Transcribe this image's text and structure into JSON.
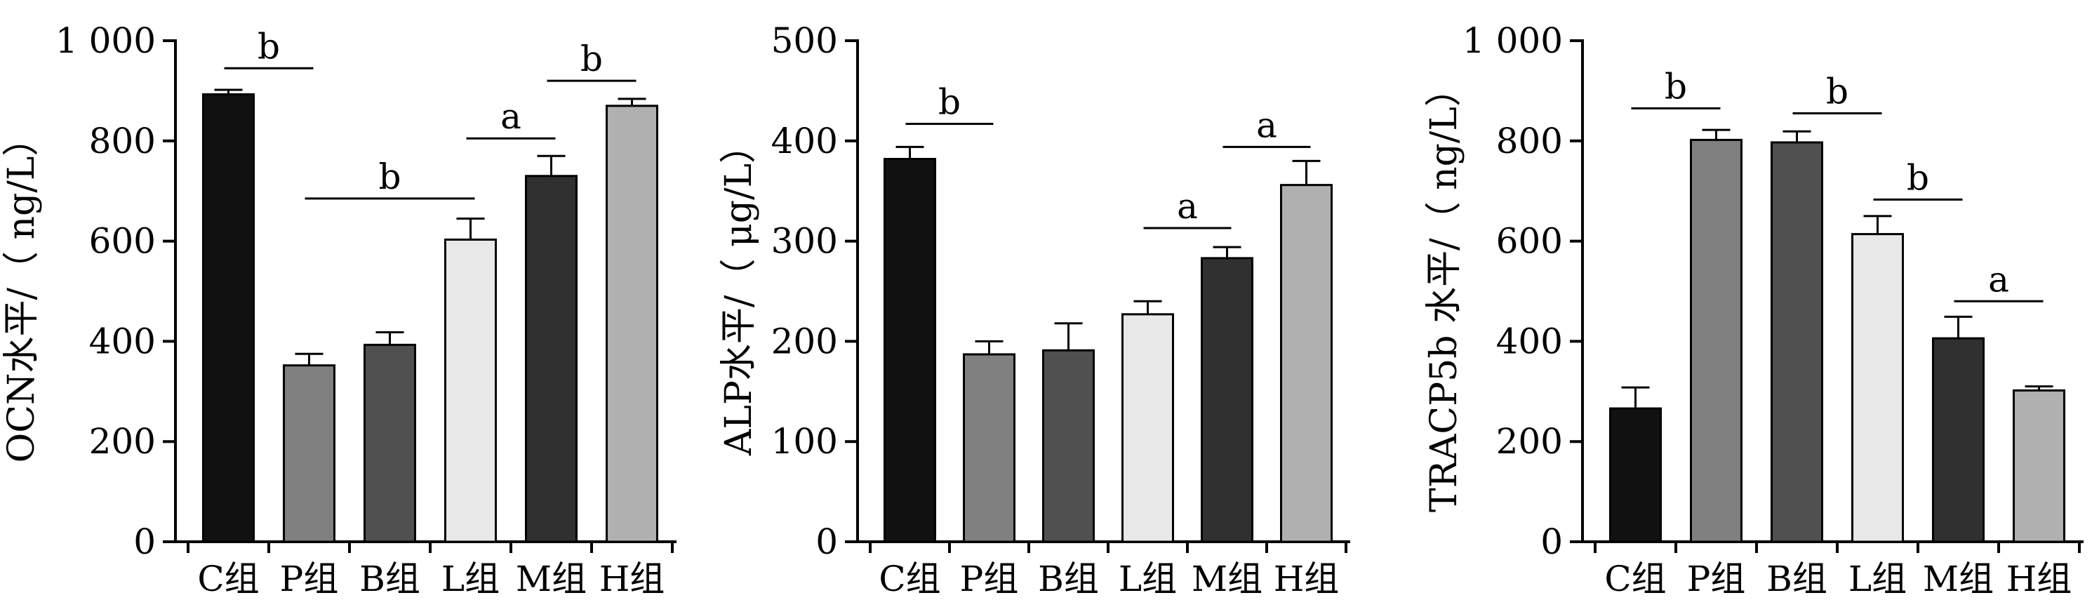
{
  "chart_data": [
    {
      "type": "bar",
      "ylabel": "OCN水平/（ ng/L）",
      "ylim": [
        0,
        1000
      ],
      "yticks": [
        0,
        200,
        400,
        600,
        800,
        1000
      ],
      "ytick_labels": [
        "0",
        "200",
        "400",
        "600",
        "800",
        "1 000"
      ],
      "categories": [
        "C组",
        "P组",
        "B组",
        "L组",
        "M组",
        "H组"
      ],
      "values": [
        893,
        352,
        393,
        603,
        730,
        870
      ],
      "errors": [
        9,
        23,
        25,
        42,
        40,
        14
      ],
      "colors": [
        "#111111",
        "#808080",
        "#505050",
        "#e8e8e8",
        "#303030",
        "#b0b0b0"
      ],
      "annotations": [
        {
          "from": 0,
          "to": 1,
          "label": "b",
          "y": 945
        },
        {
          "from": 1,
          "to": 3,
          "label": "b",
          "y": 685
        },
        {
          "from": 3,
          "to": 4,
          "label": "a",
          "y": 805
        },
        {
          "from": 4,
          "to": 5,
          "label": "b",
          "y": 920
        }
      ]
    },
    {
      "type": "bar",
      "ylabel": "ALP水平/（ μg/L）",
      "ylim": [
        0,
        500
      ],
      "yticks": [
        0,
        100,
        200,
        300,
        400,
        500
      ],
      "ytick_labels": [
        "0",
        "100",
        "200",
        "300",
        "400",
        "500"
      ],
      "categories": [
        "C组",
        "P组",
        "B组",
        "L组",
        "M组",
        "H组"
      ],
      "values": [
        382,
        187,
        191,
        227,
        283,
        356
      ],
      "errors": [
        12,
        13,
        27,
        13,
        11,
        24
      ],
      "colors": [
        "#111111",
        "#808080",
        "#505050",
        "#e8e8e8",
        "#303030",
        "#b0b0b0"
      ],
      "annotations": [
        {
          "from": 0,
          "to": 1,
          "label": "b",
          "y": 417
        },
        {
          "from": 3,
          "to": 4,
          "label": "a",
          "y": 313
        },
        {
          "from": 4,
          "to": 5,
          "label": "a",
          "y": 394
        }
      ]
    },
    {
      "type": "bar",
      "ylabel": "TRACP5b 水平/（ ng/L）",
      "ylim": [
        0,
        1000
      ],
      "yticks": [
        0,
        200,
        400,
        600,
        800,
        1000
      ],
      "ytick_labels": [
        "0",
        "200",
        "400",
        "600",
        "800",
        "1 000"
      ],
      "categories": [
        "C组",
        "P组",
        "B组",
        "L组",
        "M组",
        "H组"
      ],
      "values": [
        266,
        802,
        797,
        614,
        406,
        302
      ],
      "errors": [
        42,
        20,
        22,
        36,
        43,
        8
      ],
      "colors": [
        "#111111",
        "#808080",
        "#505050",
        "#e8e8e8",
        "#303030",
        "#b0b0b0"
      ],
      "annotations": [
        {
          "from": 0,
          "to": 1,
          "label": "b",
          "y": 865
        },
        {
          "from": 2,
          "to": 3,
          "label": "b",
          "y": 855
        },
        {
          "from": 3,
          "to": 4,
          "label": "b",
          "y": 683
        },
        {
          "from": 4,
          "to": 5,
          "label": "a",
          "y": 480
        }
      ]
    }
  ]
}
